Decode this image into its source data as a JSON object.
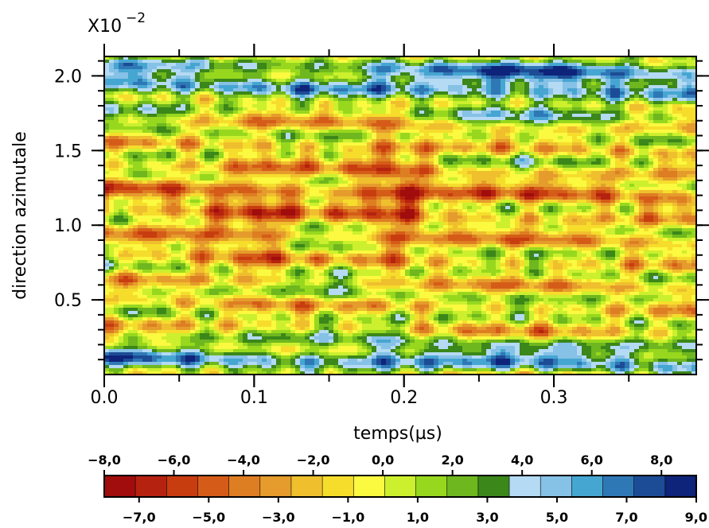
{
  "chart_data": {
    "type": "heatmap",
    "xlabel": "temps(µs)",
    "ylabel": "direction  azimutale",
    "y_multiplier_base": "X10",
    "y_multiplier_exp": "−2",
    "x_range": [
      0.0,
      0.395
    ],
    "y_range": [
      0.0,
      0.0213
    ],
    "x_ticks": [
      {
        "value": 0.0,
        "label": "0.0"
      },
      {
        "value": 0.1,
        "label": "0.1"
      },
      {
        "value": 0.2,
        "label": "0.2"
      },
      {
        "value": 0.3,
        "label": "0.3"
      }
    ],
    "y_ticks": [
      {
        "value": 0.005,
        "label": "0.5"
      },
      {
        "value": 0.01,
        "label": "1.0"
      },
      {
        "value": 0.015,
        "label": "1.5"
      },
      {
        "value": 0.02,
        "label": "2.0"
      }
    ],
    "colorbar": {
      "range": [
        -8,
        9
      ],
      "top_labels": [
        {
          "value": -8,
          "label": "−8,0"
        },
        {
          "value": -6,
          "label": "−6,0"
        },
        {
          "value": -4,
          "label": "−4,0"
        },
        {
          "value": -2,
          "label": "−2,0"
        },
        {
          "value": 0,
          "label": "0,0"
        },
        {
          "value": 2,
          "label": "2,0"
        },
        {
          "value": 4,
          "label": "4,0"
        },
        {
          "value": 6,
          "label": "6,0"
        },
        {
          "value": 8,
          "label": "8,0"
        }
      ],
      "bottom_labels": [
        {
          "value": -7,
          "label": "−7,0"
        },
        {
          "value": -5,
          "label": "−5,0"
        },
        {
          "value": -3,
          "label": "−3,0"
        },
        {
          "value": -1,
          "label": "−1,0"
        },
        {
          "value": 1,
          "label": "1,0"
        },
        {
          "value": 3,
          "label": "3,0"
        },
        {
          "value": 5,
          "label": "5,0"
        },
        {
          "value": 7,
          "label": "7,0"
        },
        {
          "value": 9,
          "label": "9,0"
        }
      ],
      "colors": [
        "#a00d0c",
        "#b5220f",
        "#c83d10",
        "#d55c18",
        "#de7e22",
        "#e59c2c",
        "#efbf2e",
        "#f6dd2c",
        "#fbf940",
        "#ccf02e",
        "#97d81e",
        "#6fb71f",
        "#3b8719",
        "#b4daf4",
        "#86c1e6",
        "#46a6d2",
        "#2f78b6",
        "#1d4c96",
        "#0e237a"
      ]
    }
  }
}
